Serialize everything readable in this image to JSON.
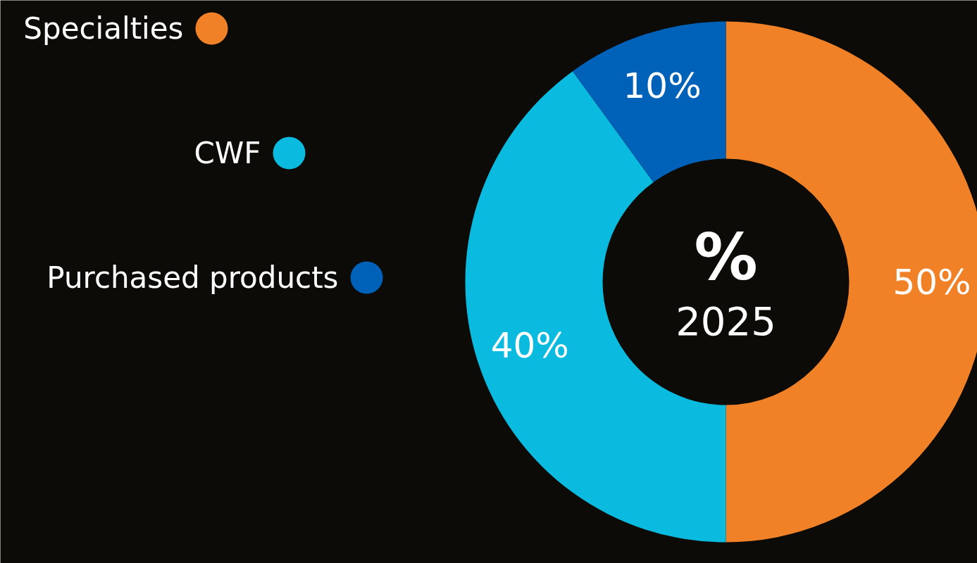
{
  "chart_data": {
    "type": "donut",
    "title": "%",
    "subtitle": "2025",
    "categories": [
      "Specialties",
      "CWF",
      "Purchased products"
    ],
    "values": [
      50,
      40,
      10
    ],
    "colors": [
      "#f08127",
      "#0abbdf",
      "#0061b8"
    ],
    "value_labels": [
      "50%",
      "40%",
      "10%"
    ],
    "legend": "top left"
  }
}
